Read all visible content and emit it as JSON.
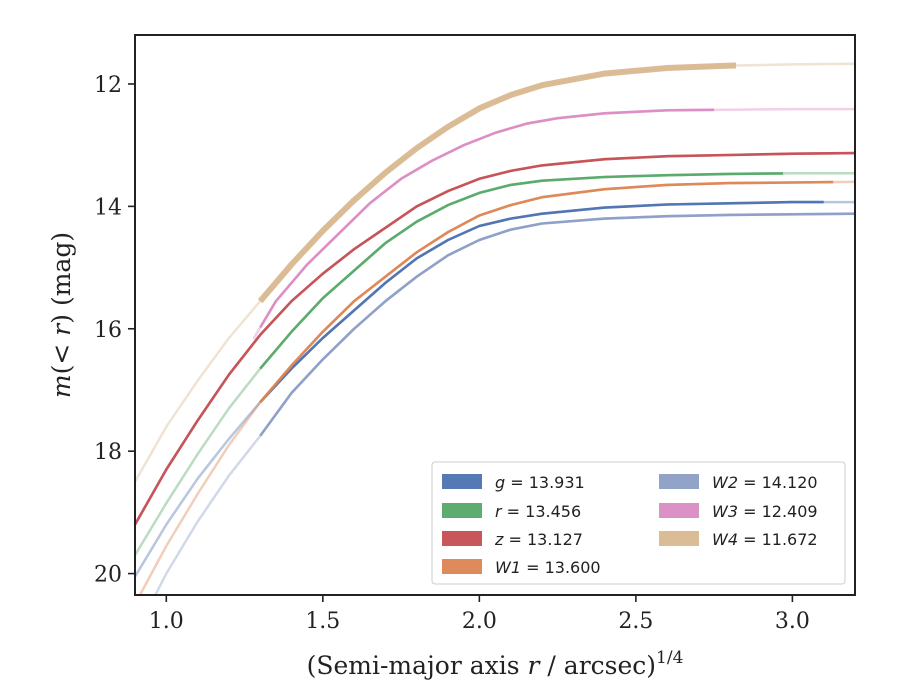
{
  "chart_data": {
    "type": "line",
    "title": "",
    "xlabel": "(Semi-major axis r / arcsec)",
    "xlabel_prefix": "(Semi-major axis ",
    "xlabel_var": "r",
    "xlabel_suffix": " / arcsec)",
    "xlabel_exp": "1/4",
    "ylabel": "m(< r) (mag)",
    "ylabel_func": "m",
    "ylabel_open": "(",
    "ylabel_lt": "< ",
    "ylabel_var": "r",
    "ylabel_close": ")",
    "ylabel_unit": " (mag)",
    "xlim": [
      0.9,
      3.2
    ],
    "ylim": [
      20.35,
      11.2
    ],
    "y_inverted": true,
    "xticks": [
      "1.0",
      "1.5",
      "2.0",
      "2.5",
      "3.0"
    ],
    "yticks": [
      "12",
      "14",
      "16",
      "18",
      "20"
    ],
    "grid": false,
    "legend_position": "lower-right",
    "legend_columns": 2,
    "series": [
      {
        "name": "g = 13.931",
        "var": "g",
        "value": "13.931",
        "color": "#4c72b0",
        "x": [
          0.9,
          1.0,
          1.1,
          1.2,
          1.3,
          1.4,
          1.5,
          1.6,
          1.7,
          1.8,
          1.9,
          2.0,
          2.1,
          2.2,
          2.4,
          2.6,
          2.8,
          3.0,
          3.2
        ],
        "y": [
          20.05,
          19.2,
          18.45,
          17.8,
          17.2,
          16.65,
          16.15,
          15.7,
          15.25,
          14.85,
          14.55,
          14.32,
          14.2,
          14.12,
          14.02,
          13.97,
          13.95,
          13.93,
          13.93
        ],
        "thick": [
          1.3,
          3.1
        ]
      },
      {
        "name": "r = 13.456",
        "var": "r",
        "value": "13.456",
        "color": "#55a868",
        "x": [
          0.9,
          1.0,
          1.1,
          1.2,
          1.3,
          1.4,
          1.5,
          1.6,
          1.7,
          1.8,
          1.9,
          2.0,
          2.1,
          2.2,
          2.4,
          2.6,
          2.8,
          3.0,
          3.2
        ],
        "y": [
          19.7,
          18.85,
          18.05,
          17.3,
          16.65,
          16.05,
          15.5,
          15.05,
          14.6,
          14.25,
          13.98,
          13.78,
          13.65,
          13.58,
          13.52,
          13.49,
          13.47,
          13.46,
          13.46
        ],
        "thick": [
          1.3,
          2.97
        ]
      },
      {
        "name": "z = 13.127",
        "var": "z",
        "value": "13.127",
        "color": "#c44e52",
        "x": [
          0.9,
          1.0,
          1.1,
          1.2,
          1.3,
          1.4,
          1.5,
          1.6,
          1.7,
          1.8,
          1.9,
          2.0,
          2.1,
          2.2,
          2.4,
          2.6,
          2.8,
          3.0,
          3.2
        ],
        "y": [
          19.2,
          18.3,
          17.5,
          16.75,
          16.1,
          15.55,
          15.1,
          14.7,
          14.35,
          14.0,
          13.75,
          13.55,
          13.42,
          13.33,
          13.23,
          13.18,
          13.16,
          13.14,
          13.13
        ],
        "thick": [
          0.9,
          3.2
        ]
      },
      {
        "name": "W1 = 13.600",
        "var": "W1",
        "value": "13.600",
        "color": "#dd8452",
        "x": [
          0.9,
          1.0,
          1.1,
          1.2,
          1.3,
          1.4,
          1.5,
          1.6,
          1.7,
          1.8,
          1.9,
          2.0,
          2.1,
          2.2,
          2.4,
          2.6,
          2.8,
          3.0,
          3.2
        ],
        "y": [
          20.5,
          19.55,
          18.7,
          17.9,
          17.2,
          16.6,
          16.05,
          15.55,
          15.15,
          14.75,
          14.42,
          14.15,
          13.98,
          13.85,
          13.72,
          13.65,
          13.62,
          13.61,
          13.6
        ],
        "thick": [
          1.3,
          3.13
        ]
      },
      {
        "name": "W2 = 14.120",
        "var": "W2",
        "value": "14.120",
        "color": "#8c9ec6",
        "x": [
          0.9,
          1.0,
          1.1,
          1.2,
          1.3,
          1.4,
          1.5,
          1.6,
          1.7,
          1.8,
          1.9,
          2.0,
          2.1,
          2.2,
          2.4,
          2.6,
          2.8,
          3.0,
          3.2
        ],
        "y": [
          21.0,
          20.0,
          19.15,
          18.4,
          17.75,
          17.05,
          16.5,
          16.0,
          15.55,
          15.15,
          14.8,
          14.55,
          14.38,
          14.28,
          14.2,
          14.16,
          14.14,
          14.13,
          14.12
        ],
        "thick": [
          1.3,
          3.2
        ]
      },
      {
        "name": "W3 = 12.409",
        "var": "W3",
        "value": "12.409",
        "color": "#da8bc3",
        "x": [
          1.28,
          1.35,
          1.45,
          1.55,
          1.65,
          1.75,
          1.85,
          1.95,
          2.05,
          2.15,
          2.25,
          2.4,
          2.6,
          2.8,
          3.0,
          3.2
        ],
        "y": [
          16.15,
          15.55,
          14.95,
          14.45,
          13.95,
          13.55,
          13.25,
          13.0,
          12.8,
          12.65,
          12.56,
          12.48,
          12.43,
          12.42,
          12.41,
          12.41
        ],
        "thick": [
          1.3,
          2.75
        ]
      },
      {
        "name": "W4 = 11.672",
        "var": "W4",
        "value": "11.672",
        "color": "#d8b890",
        "x": [
          0.9,
          1.0,
          1.1,
          1.2,
          1.3,
          1.4,
          1.5,
          1.6,
          1.7,
          1.8,
          1.9,
          2.0,
          2.1,
          2.2,
          2.4,
          2.6,
          2.8,
          3.0,
          3.2
        ],
        "y": [
          18.5,
          17.6,
          16.85,
          16.15,
          15.55,
          14.95,
          14.4,
          13.9,
          13.45,
          13.05,
          12.7,
          12.4,
          12.18,
          12.02,
          11.83,
          11.74,
          11.7,
          11.68,
          11.67
        ],
        "thick": [
          1.3,
          2.82
        ]
      }
    ]
  }
}
